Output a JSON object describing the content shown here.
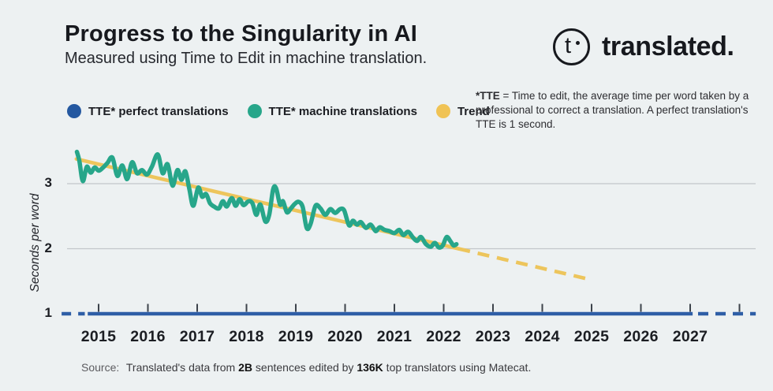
{
  "header": {
    "title": "Progress to the Singularity in AI",
    "subtitle": "Measured using Time to Edit in machine translation."
  },
  "logo": {
    "glyph": "t",
    "wordmark": "translated."
  },
  "legend": {
    "items": [
      {
        "label": "TTE* perfect translations",
        "color": "#2458a0"
      },
      {
        "label": "TTE* machine translations",
        "color": "#27a68a"
      },
      {
        "label": "Trend",
        "color": "#f0c355"
      }
    ]
  },
  "note": {
    "bold": "*TTE",
    "rest": " = Time to edit, the average time per word taken by a professional to correct a translation. A perfect translation's TTE is 1 second."
  },
  "source": {
    "label": "Source:",
    "part1": " Translated's data from ",
    "bold1": "2B",
    "part2": " sentences edited by ",
    "bold2": "136K",
    "part3": " top translators using Matecat."
  },
  "chart_data": {
    "type": "line",
    "title": "Progress to the Singularity in AI",
    "ylabel": "Seconds per word",
    "y_axis": {
      "ticks": [
        3,
        2,
        1
      ],
      "gridline_values": [
        3,
        2
      ],
      "range": [
        1,
        3.7
      ]
    },
    "x_axis": {
      "ticks": [
        2015,
        2016,
        2017,
        2018,
        2019,
        2020,
        2021,
        2022,
        2023,
        2024,
        2025,
        2026,
        2027
      ],
      "tick_marks": [
        2015,
        2016,
        2017,
        2018,
        2019,
        2020,
        2021,
        2022,
        2023,
        2024,
        2025,
        2026,
        2027,
        2028
      ],
      "range": [
        2014.2,
        2028.4
      ]
    },
    "series": [
      {
        "name": "TTE* perfect translations",
        "type": "constant",
        "value": 1,
        "color": "#2e5ea6",
        "dashed_left": [
          2014.25,
          2014.72
        ],
        "solid": [
          2014.78,
          2027.05
        ],
        "dashed_right": [
          2027.16,
          2028.33
        ]
      },
      {
        "name": "TTE* machine translations",
        "color": "#27a68a",
        "points": [
          [
            2014.56,
            3.49
          ],
          [
            2014.61,
            3.35
          ],
          [
            2014.68,
            3.04
          ],
          [
            2014.76,
            3.26
          ],
          [
            2014.84,
            3.17
          ],
          [
            2014.92,
            3.25
          ],
          [
            2015.0,
            3.2
          ],
          [
            2015.08,
            3.24
          ],
          [
            2015.18,
            3.32
          ],
          [
            2015.28,
            3.4
          ],
          [
            2015.38,
            3.12
          ],
          [
            2015.48,
            3.28
          ],
          [
            2015.58,
            3.07
          ],
          [
            2015.68,
            3.33
          ],
          [
            2015.78,
            3.16
          ],
          [
            2015.88,
            3.21
          ],
          [
            2015.98,
            3.14
          ],
          [
            2016.08,
            3.26
          ],
          [
            2016.2,
            3.45
          ],
          [
            2016.3,
            3.16
          ],
          [
            2016.4,
            3.3
          ],
          [
            2016.5,
            2.97
          ],
          [
            2016.6,
            3.21
          ],
          [
            2016.68,
            3.06
          ],
          [
            2016.76,
            3.19
          ],
          [
            2016.84,
            2.92
          ],
          [
            2016.92,
            2.66
          ],
          [
            2017.02,
            2.94
          ],
          [
            2017.1,
            2.8
          ],
          [
            2017.18,
            2.84
          ],
          [
            2017.26,
            2.7
          ],
          [
            2017.34,
            2.65
          ],
          [
            2017.44,
            2.62
          ],
          [
            2017.52,
            2.73
          ],
          [
            2017.6,
            2.65
          ],
          [
            2017.7,
            2.78
          ],
          [
            2017.78,
            2.66
          ],
          [
            2017.86,
            2.76
          ],
          [
            2017.94,
            2.67
          ],
          [
            2018.04,
            2.73
          ],
          [
            2018.12,
            2.7
          ],
          [
            2018.2,
            2.52
          ],
          [
            2018.28,
            2.68
          ],
          [
            2018.38,
            2.42
          ],
          [
            2018.46,
            2.52
          ],
          [
            2018.54,
            2.91
          ],
          [
            2018.6,
            2.93
          ],
          [
            2018.68,
            2.68
          ],
          [
            2018.74,
            2.73
          ],
          [
            2018.82,
            2.56
          ],
          [
            2018.9,
            2.62
          ],
          [
            2018.98,
            2.69
          ],
          [
            2019.06,
            2.72
          ],
          [
            2019.14,
            2.64
          ],
          [
            2019.22,
            2.32
          ],
          [
            2019.3,
            2.38
          ],
          [
            2019.4,
            2.66
          ],
          [
            2019.5,
            2.62
          ],
          [
            2019.6,
            2.52
          ],
          [
            2019.7,
            2.61
          ],
          [
            2019.8,
            2.55
          ],
          [
            2019.9,
            2.61
          ],
          [
            2019.98,
            2.59
          ],
          [
            2020.08,
            2.36
          ],
          [
            2020.16,
            2.43
          ],
          [
            2020.24,
            2.37
          ],
          [
            2020.32,
            2.41
          ],
          [
            2020.42,
            2.32
          ],
          [
            2020.52,
            2.37
          ],
          [
            2020.62,
            2.27
          ],
          [
            2020.7,
            2.33
          ],
          [
            2020.8,
            2.29
          ],
          [
            2020.9,
            2.27
          ],
          [
            2021.0,
            2.24
          ],
          [
            2021.1,
            2.29
          ],
          [
            2021.18,
            2.21
          ],
          [
            2021.28,
            2.26
          ],
          [
            2021.38,
            2.17
          ],
          [
            2021.46,
            2.12
          ],
          [
            2021.54,
            2.18
          ],
          [
            2021.64,
            2.07
          ],
          [
            2021.74,
            2.03
          ],
          [
            2021.82,
            2.09
          ],
          [
            2021.9,
            2.02
          ],
          [
            2021.98,
            2.05
          ],
          [
            2022.06,
            2.18
          ],
          [
            2022.14,
            2.11
          ],
          [
            2022.2,
            2.05
          ],
          [
            2022.26,
            2.07
          ]
        ]
      },
      {
        "name": "Trend",
        "color": "#edc55c",
        "solid": [
          [
            2014.55,
            3.38
          ],
          [
            2022.3,
            2.0
          ]
        ],
        "dashed": [
          [
            2022.3,
            2.0
          ],
          [
            2024.95,
            1.53
          ]
        ]
      }
    ]
  }
}
